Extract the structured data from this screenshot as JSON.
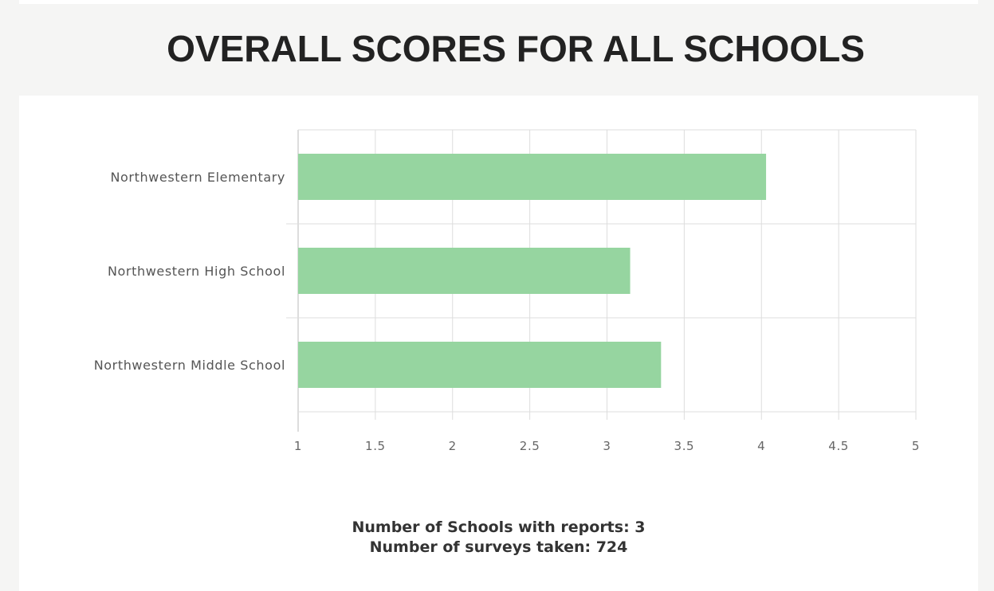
{
  "page": {
    "title": "OVERALL SCORES FOR ALL SCHOOLS"
  },
  "summary": {
    "schools_line": "Number of Schools with reports: 3",
    "surveys_line": "Number of surveys taken: 724"
  },
  "colors": {
    "bar": "#96d5a0",
    "background": "#f5f5f4",
    "card": "#ffffff",
    "grid": "#dddddd",
    "axis": "#bbbbbb"
  },
  "chart_data": {
    "type": "bar",
    "orientation": "horizontal",
    "title": "",
    "xlabel": "",
    "ylabel": "",
    "categories": [
      "Northwestern Elementary",
      "Northwestern High School",
      "Northwestern Middle School"
    ],
    "values": [
      4.03,
      3.15,
      3.35
    ],
    "xlim": [
      1,
      5
    ],
    "ticks": [
      "1",
      "1.5",
      "2",
      "2.5",
      "3",
      "3.5",
      "4",
      "4.5",
      "5"
    ],
    "grid": true,
    "legend": "none"
  }
}
